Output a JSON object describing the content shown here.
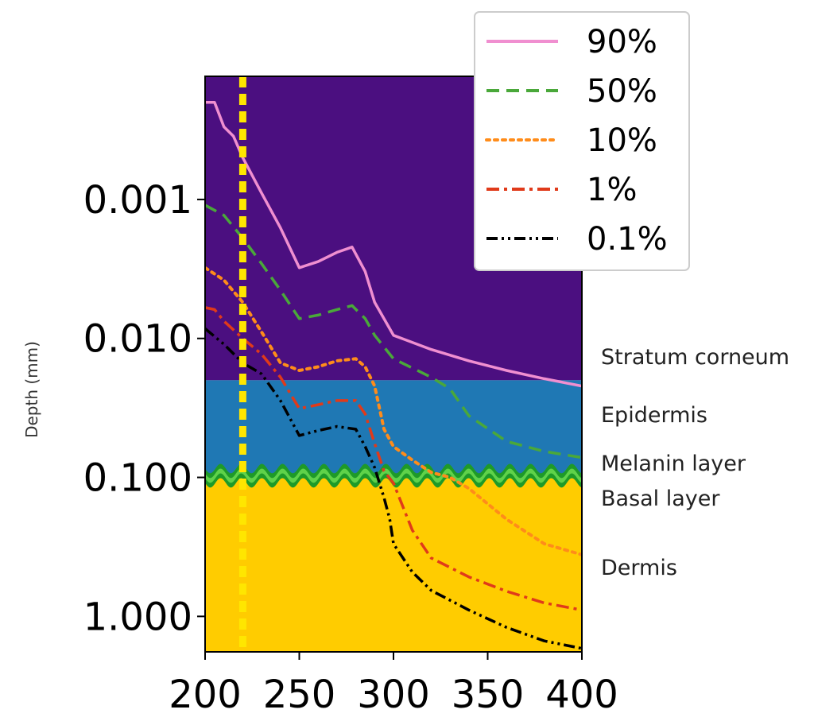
{
  "chart_data": {
    "type": "line",
    "title": "",
    "xlabel": "",
    "ylabel": "Depth (mm)",
    "xlim": [
      200,
      400
    ],
    "ylim_log": [
      0.00013,
      1.8
    ],
    "y_scale": "log",
    "x_ticks": [
      "200",
      "250",
      "300",
      "350",
      "400"
    ],
    "y_ticks": [
      {
        "value": 0.001,
        "label": "0.001"
      },
      {
        "value": 0.01,
        "label": "0.010"
      },
      {
        "value": 0.1,
        "label": "0.100"
      },
      {
        "value": 1,
        "label": "1.000"
      }
    ],
    "marker_line": {
      "x": 220,
      "color": "#ffe600"
    },
    "layers": [
      {
        "name": "Stratum corneum",
        "top": 0.00013,
        "bottom": 0.02,
        "color": "#4b0f80"
      },
      {
        "name": "Epidermis",
        "top": 0.02,
        "bottom": 0.09,
        "color": "#1f78b4"
      },
      {
        "name": "Melanin layer",
        "top": 0.09,
        "bottom": 0.105,
        "color": "#33a02c"
      },
      {
        "name": "Basal layer",
        "top": 0.105,
        "bottom": 0.11,
        "color": "#33a02c"
      },
      {
        "name": "Dermis",
        "top": 0.11,
        "bottom": 1.8,
        "color": "#ffcc00"
      }
    ],
    "series": [
      {
        "name": "90%",
        "color": "#f08fd0",
        "dash": "solid",
        "x": [
          200,
          205,
          210,
          215,
          220,
          230,
          240,
          250,
          260,
          270,
          278,
          285,
          290,
          300,
          320,
          340,
          360,
          380,
          400
        ],
        "y": [
          0.0002,
          0.0002,
          0.0003,
          0.00035,
          0.0005,
          0.0009,
          0.0016,
          0.0031,
          0.0028,
          0.0024,
          0.0022,
          0.0033,
          0.0055,
          0.0095,
          0.012,
          0.0145,
          0.017,
          0.0195,
          0.022
        ]
      },
      {
        "name": "50%",
        "color": "#4aa83a",
        "dash": "dashed",
        "x": [
          200,
          210,
          220,
          230,
          240,
          250,
          260,
          270,
          278,
          285,
          290,
          300,
          320,
          330,
          340,
          360,
          380,
          400
        ],
        "y": [
          0.0011,
          0.0013,
          0.0019,
          0.0029,
          0.0045,
          0.0072,
          0.0068,
          0.0062,
          0.0058,
          0.0072,
          0.0095,
          0.014,
          0.019,
          0.023,
          0.036,
          0.055,
          0.065,
          0.072
        ]
      },
      {
        "name": "10%",
        "color": "#ff8c1a",
        "dash": "dotted",
        "x": [
          200,
          210,
          220,
          230,
          240,
          250,
          260,
          270,
          280,
          285,
          290,
          295,
          300,
          310,
          320,
          330,
          340,
          360,
          380,
          400
        ],
        "y": [
          0.0031,
          0.0038,
          0.0055,
          0.009,
          0.015,
          0.017,
          0.016,
          0.0145,
          0.014,
          0.016,
          0.022,
          0.045,
          0.06,
          0.075,
          0.092,
          0.1,
          0.12,
          0.2,
          0.3,
          0.36
        ]
      },
      {
        "name": "1%",
        "color": "#e03a1a",
        "dash": "dashdot",
        "x": [
          200,
          205,
          210,
          220,
          230,
          240,
          250,
          260,
          270,
          280,
          285,
          290,
          295,
          300,
          310,
          320,
          340,
          360,
          380,
          400
        ],
        "y": [
          0.006,
          0.0062,
          0.0075,
          0.01,
          0.013,
          0.019,
          0.032,
          0.03,
          0.028,
          0.028,
          0.035,
          0.057,
          0.09,
          0.11,
          0.24,
          0.38,
          0.52,
          0.66,
          0.8,
          0.9
        ]
      },
      {
        "name": "0.1%",
        "color": "#000000",
        "dash": "dashdotdot",
        "x": [
          200,
          210,
          220,
          230,
          240,
          250,
          260,
          270,
          280,
          285,
          290,
          295,
          298,
          300,
          310,
          320,
          340,
          360,
          380,
          400
        ],
        "y": [
          0.0085,
          0.011,
          0.015,
          0.018,
          0.028,
          0.05,
          0.046,
          0.043,
          0.045,
          0.06,
          0.085,
          0.14,
          0.2,
          0.3,
          0.48,
          0.65,
          0.9,
          1.2,
          1.5,
          1.7
        ]
      }
    ],
    "legend": {
      "placement": "top-right"
    }
  }
}
